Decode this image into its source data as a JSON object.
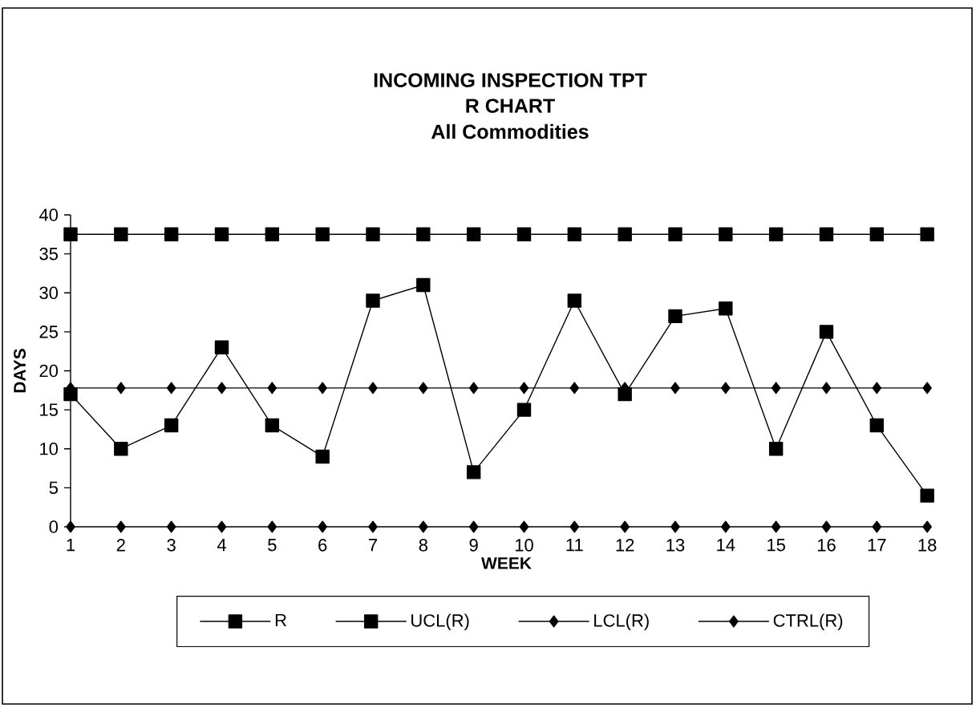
{
  "chart_data": {
    "type": "line",
    "title": "INCOMING INSPECTION TPT",
    "subtitle": [
      "R CHART",
      "All Commodities"
    ],
    "xlabel": "WEEK",
    "ylabel": "DAYS",
    "categories": [
      "1",
      "2",
      "3",
      "4",
      "5",
      "6",
      "7",
      "8",
      "9",
      "10",
      "11",
      "12",
      "13",
      "14",
      "15",
      "16",
      "17",
      "18"
    ],
    "series": [
      {
        "name": "R",
        "color": "#000000",
        "marker": "square",
        "values": [
          17,
          10,
          13,
          23,
          13,
          9,
          29,
          31,
          7,
          15,
          29,
          17,
          27,
          28,
          10,
          25,
          13,
          4
        ]
      },
      {
        "name": "UCL(R)",
        "color": "#000000",
        "marker": "square",
        "values": [
          37.5,
          37.5,
          37.5,
          37.5,
          37.5,
          37.5,
          37.5,
          37.5,
          37.5,
          37.5,
          37.5,
          37.5,
          37.5,
          37.5,
          37.5,
          37.5,
          37.5,
          37.5
        ]
      },
      {
        "name": "LCL(R)",
        "color": "#000000",
        "marker": "diamond",
        "values": [
          0,
          0,
          0,
          0,
          0,
          0,
          0,
          0,
          0,
          0,
          0,
          0,
          0,
          0,
          0,
          0,
          0,
          0
        ]
      },
      {
        "name": "CTRL(R)",
        "color": "#000000",
        "marker": "diamond",
        "values": [
          17.8,
          17.8,
          17.8,
          17.8,
          17.8,
          17.8,
          17.8,
          17.8,
          17.8,
          17.8,
          17.8,
          17.8,
          17.8,
          17.8,
          17.8,
          17.8,
          17.8,
          17.8
        ]
      }
    ],
    "ylim": [
      0,
      40
    ],
    "yticks": [
      0,
      5,
      10,
      15,
      20,
      25,
      30,
      35,
      40
    ],
    "grid": false,
    "legend": "bottom",
    "line_style": "solid"
  }
}
